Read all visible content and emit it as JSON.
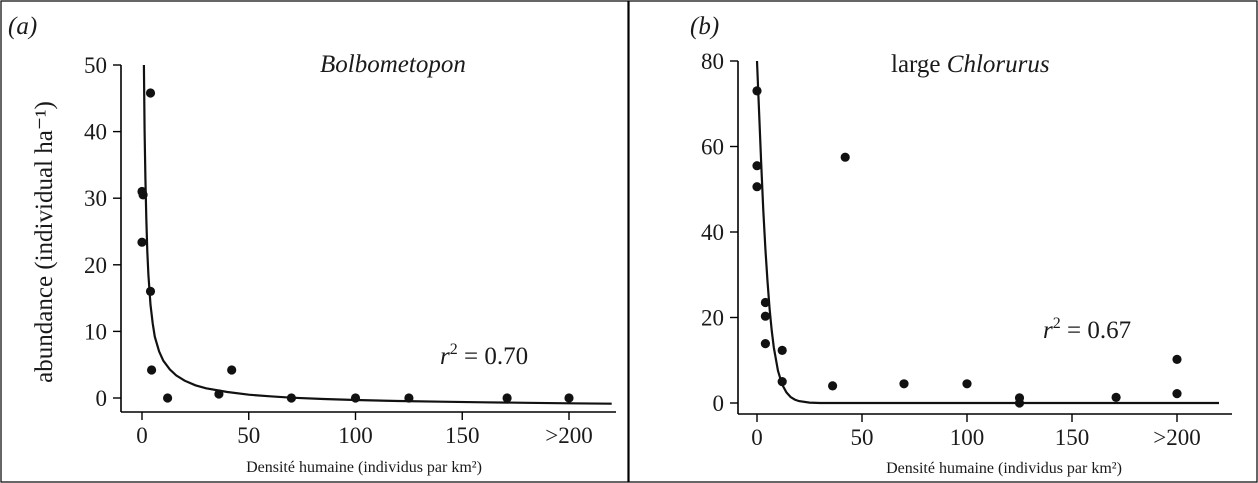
{
  "chart_data": [
    {
      "type": "scatter",
      "panel_label": "(a)",
      "title_italic": "Bolbometopon",
      "xlabel": "Densité  humaine (individus par km²)",
      "ylabel": "abundance (individual ha⁻¹)",
      "xlim": [
        -5,
        220
      ],
      "ylim": [
        -2,
        50
      ],
      "xticks": [
        0,
        50,
        100,
        150,
        200
      ],
      "xtick_labels": [
        "0",
        "50",
        "100",
        "150",
        ">200"
      ],
      "yticks": [
        0,
        10,
        20,
        30,
        40,
        50
      ],
      "annotation": {
        "text": " = 0.70",
        "base": "r",
        "sup": "2"
      },
      "points": [
        {
          "x": 0,
          "y": 31
        },
        {
          "x": 0.5,
          "y": 30.5
        },
        {
          "x": 0,
          "y": 23.4
        },
        {
          "x": 4,
          "y": 45.8
        },
        {
          "x": 4,
          "y": 16
        },
        {
          "x": 4.5,
          "y": 4.2
        },
        {
          "x": 12,
          "y": 0
        },
        {
          "x": 36,
          "y": 0.6
        },
        {
          "x": 42,
          "y": 4.2
        },
        {
          "x": 70,
          "y": 0
        },
        {
          "x": 100,
          "y": 0
        },
        {
          "x": 125,
          "y": 0
        },
        {
          "x": 171,
          "y": 0
        },
        {
          "x": 200,
          "y": 0
        }
      ],
      "fit_curve": {
        "x": [
          0.9,
          1.2,
          1.6,
          2,
          2.5,
          3,
          4,
          5,
          6,
          8,
          10,
          13,
          16,
          20,
          25,
          30,
          40,
          50,
          60,
          70,
          85,
          100,
          120,
          140,
          160,
          180,
          200,
          220
        ],
        "y": [
          50,
          40,
          33,
          27,
          22,
          18.5,
          14,
          11.2,
          9.2,
          7,
          5.6,
          4.3,
          3.4,
          2.6,
          1.9,
          1.45,
          0.9,
          0.5,
          0.25,
          0.05,
          -0.15,
          -0.3,
          -0.45,
          -0.55,
          -0.65,
          -0.72,
          -0.8,
          -0.85
        ]
      }
    },
    {
      "type": "scatter",
      "panel_label": "(b)",
      "title_prefix": "large ",
      "title_italic": "Chlorurus",
      "xlabel": "Densité  humaine (individus par km²)",
      "xlim": [
        -5,
        220
      ],
      "ylim": [
        -2,
        80
      ],
      "xticks": [
        0,
        50,
        100,
        150,
        200
      ],
      "xtick_labels": [
        "0",
        "50",
        "100",
        "150",
        ">200"
      ],
      "yticks": [
        0,
        20,
        40,
        60,
        80
      ],
      "annotation": {
        "text": " = 0.67",
        "base": "r",
        "sup": "2"
      },
      "points": [
        {
          "x": 0,
          "y": 73
        },
        {
          "x": 0,
          "y": 55.5
        },
        {
          "x": 0,
          "y": 50.6
        },
        {
          "x": 4,
          "y": 23.5
        },
        {
          "x": 4,
          "y": 20.3
        },
        {
          "x": 4,
          "y": 13.9
        },
        {
          "x": 12,
          "y": 12.3
        },
        {
          "x": 12,
          "y": 5
        },
        {
          "x": 36,
          "y": 4
        },
        {
          "x": 42,
          "y": 57.5
        },
        {
          "x": 70,
          "y": 4.5
        },
        {
          "x": 100,
          "y": 4.5
        },
        {
          "x": 125,
          "y": 1.2
        },
        {
          "x": 125,
          "y": 0
        },
        {
          "x": 171,
          "y": 1.3
        },
        {
          "x": 200,
          "y": 10.2
        },
        {
          "x": 200,
          "y": 2.2
        }
      ],
      "fit_curve": {
        "x": [
          0,
          1,
          2,
          3,
          4,
          5,
          6,
          7,
          8,
          10,
          12,
          14,
          16,
          18,
          20,
          25,
          30,
          40,
          60,
          100,
          150,
          220
        ],
        "y": [
          80,
          68,
          56,
          45,
          36,
          28.5,
          22,
          17,
          13,
          7.5,
          4.3,
          2.5,
          1.4,
          0.8,
          0.45,
          0.1,
          0,
          0,
          0,
          0,
          0,
          0
        ]
      }
    }
  ]
}
